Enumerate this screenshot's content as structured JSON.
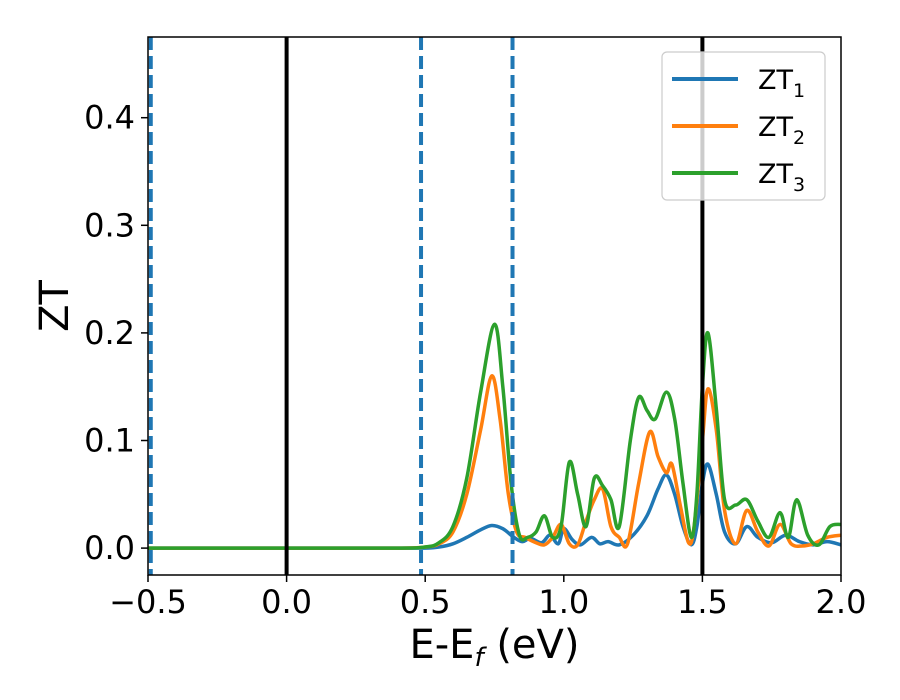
{
  "chart_data": {
    "type": "line",
    "xlabel": "E-E$_f$ (eV)",
    "xlabel_parts": {
      "main": "E-E",
      "sub": "f",
      "tail": " (eV)"
    },
    "ylabel": "ZT",
    "xlim": [
      -0.5,
      2.0
    ],
    "ylim": [
      -0.025,
      0.475
    ],
    "xticks": [
      -0.5,
      0.0,
      0.5,
      1.0,
      1.5,
      2.0
    ],
    "xtick_labels": [
      "−0.5",
      "0.0",
      "0.5",
      "1.0",
      "1.5",
      "2.0"
    ],
    "yticks": [
      0.0,
      0.1,
      0.2,
      0.3,
      0.4
    ],
    "ytick_labels": [
      "0.0",
      "0.1",
      "0.2",
      "0.3",
      "0.4"
    ],
    "grid": false,
    "legend": "top-right",
    "vlines_solid": [
      0.0,
      1.5
    ],
    "vlines_dashed": [
      -0.49,
      0.485,
      0.815
    ],
    "colors": {
      "solid_vline": "#000000",
      "dashed_vline": "#1f77b4"
    },
    "series": [
      {
        "name": "ZT1",
        "label_main": "ZT",
        "label_sub": "1",
        "color": "#1f77b4",
        "x": [
          -0.5,
          0.0,
          0.4,
          0.5,
          0.55,
          0.6,
          0.65,
          0.7,
          0.74,
          0.78,
          0.82,
          0.85,
          0.88,
          0.92,
          0.95,
          0.98,
          1.0,
          1.03,
          1.06,
          1.1,
          1.13,
          1.16,
          1.2,
          1.25,
          1.3,
          1.34,
          1.37,
          1.4,
          1.43,
          1.46,
          1.48,
          1.5,
          1.52,
          1.55,
          1.58,
          1.62,
          1.66,
          1.7,
          1.75,
          1.8,
          1.85,
          1.9,
          1.95,
          2.0
        ],
        "y": [
          0.0,
          0.0,
          0.0,
          0.0,
          0.001,
          0.004,
          0.01,
          0.017,
          0.021,
          0.018,
          0.01,
          0.006,
          0.009,
          0.005,
          0.012,
          0.004,
          0.018,
          0.008,
          0.003,
          0.01,
          0.004,
          0.006,
          0.003,
          0.012,
          0.03,
          0.055,
          0.068,
          0.05,
          0.02,
          0.003,
          0.02,
          0.06,
          0.078,
          0.05,
          0.015,
          0.004,
          0.02,
          0.01,
          0.005,
          0.012,
          0.006,
          0.003,
          0.006,
          0.003
        ]
      },
      {
        "name": "ZT2",
        "label_main": "ZT",
        "label_sub": "2",
        "color": "#ff7f0e",
        "x": [
          -0.5,
          0.0,
          0.4,
          0.5,
          0.55,
          0.6,
          0.65,
          0.7,
          0.74,
          0.77,
          0.8,
          0.83,
          0.86,
          0.9,
          0.93,
          0.96,
          0.99,
          1.02,
          1.05,
          1.08,
          1.11,
          1.14,
          1.17,
          1.2,
          1.23,
          1.27,
          1.31,
          1.34,
          1.37,
          1.39,
          1.42,
          1.45,
          1.47,
          1.5,
          1.52,
          1.55,
          1.58,
          1.62,
          1.66,
          1.7,
          1.74,
          1.78,
          1.82,
          1.86,
          1.9,
          1.95,
          2.0
        ],
        "y": [
          0.0,
          0.0,
          0.0,
          0.001,
          0.004,
          0.015,
          0.05,
          0.11,
          0.16,
          0.12,
          0.05,
          0.015,
          0.01,
          0.005,
          0.003,
          0.01,
          0.022,
          0.004,
          0.003,
          0.025,
          0.045,
          0.055,
          0.02,
          0.01,
          0.004,
          0.06,
          0.108,
          0.085,
          0.07,
          0.078,
          0.04,
          0.005,
          0.02,
          0.1,
          0.148,
          0.11,
          0.035,
          0.004,
          0.035,
          0.015,
          0.002,
          0.022,
          0.004,
          0.002,
          0.004,
          0.01,
          0.012
        ]
      },
      {
        "name": "ZT3",
        "label_main": "ZT",
        "label_sub": "3",
        "color": "#2ca02c",
        "x": [
          -0.5,
          0.0,
          0.4,
          0.5,
          0.55,
          0.6,
          0.65,
          0.7,
          0.75,
          0.78,
          0.81,
          0.84,
          0.87,
          0.9,
          0.93,
          0.96,
          0.99,
          1.02,
          1.05,
          1.08,
          1.11,
          1.14,
          1.17,
          1.2,
          1.24,
          1.27,
          1.3,
          1.33,
          1.37,
          1.4,
          1.43,
          1.46,
          1.48,
          1.5,
          1.52,
          1.55,
          1.58,
          1.62,
          1.66,
          1.7,
          1.74,
          1.78,
          1.81,
          1.84,
          1.88,
          1.92,
          1.96,
          2.0
        ],
        "y": [
          0.0,
          0.0,
          0.0,
          0.001,
          0.005,
          0.02,
          0.065,
          0.145,
          0.208,
          0.15,
          0.06,
          0.012,
          0.01,
          0.015,
          0.03,
          0.01,
          0.02,
          0.08,
          0.05,
          0.02,
          0.065,
          0.058,
          0.045,
          0.02,
          0.1,
          0.14,
          0.128,
          0.12,
          0.145,
          0.12,
          0.06,
          0.01,
          0.05,
          0.15,
          0.2,
          0.13,
          0.045,
          0.04,
          0.045,
          0.025,
          0.01,
          0.033,
          0.01,
          0.045,
          0.012,
          0.003,
          0.02,
          0.022
        ]
      }
    ]
  }
}
